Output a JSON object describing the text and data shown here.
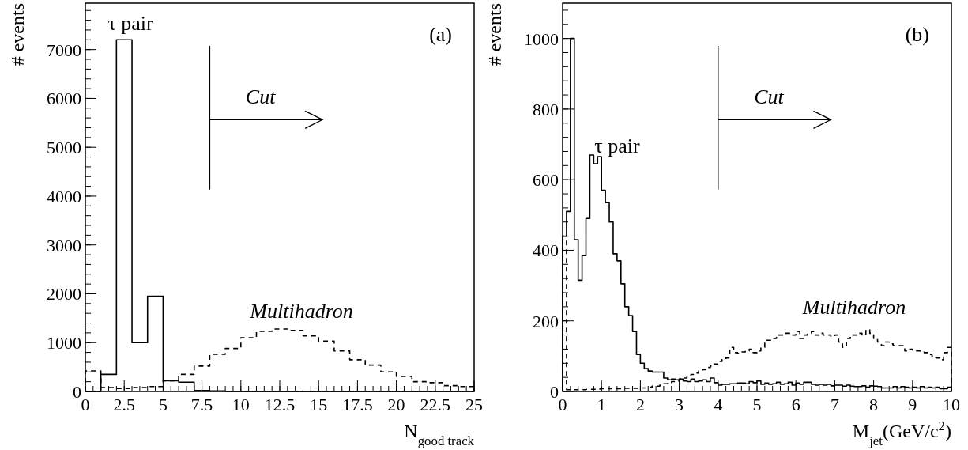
{
  "chart_data": [
    {
      "type": "histogram",
      "xlabel": "N$_{good track}$",
      "ylabel": "# events",
      "bins": [
        0,
        1,
        2,
        3,
        4,
        5,
        6,
        7,
        8,
        9,
        10,
        11,
        12,
        13,
        14,
        15,
        16,
        17,
        18,
        19,
        20,
        21,
        22,
        23,
        24,
        25
      ],
      "series": [
        {
          "name": "τ pair",
          "color": "#000000",
          "line_style": "solid",
          "values": [
            0,
            350,
            7200,
            1000,
            1950,
            220,
            190,
            20,
            10,
            0,
            0,
            0,
            0,
            0,
            0,
            0,
            0,
            0,
            0,
            0,
            0,
            0,
            0,
            0,
            0
          ]
        },
        {
          "name": "Multihadron",
          "color": "#000000",
          "line_style": "dashed",
          "values": [
            420,
            80,
            60,
            80,
            100,
            220,
            350,
            520,
            760,
            880,
            1100,
            1230,
            1280,
            1250,
            1140,
            1030,
            830,
            650,
            540,
            400,
            310,
            200,
            180,
            120,
            100
          ]
        }
      ],
      "xlim": [
        0,
        25
      ],
      "xticks": [
        0,
        2.5,
        5,
        7.5,
        10,
        12.5,
        15,
        17.5,
        20,
        22.5,
        25
      ],
      "ylim": [
        0,
        7950
      ],
      "yticks": [
        0,
        1000,
        2000,
        3000,
        4000,
        5000,
        6000,
        7000
      ],
      "ref_lines": [
        {
          "axis": "x",
          "value": 8,
          "label": "Cut"
        }
      ],
      "annotations": [
        "(a)"
      ]
    },
    {
      "type": "histogram",
      "xlabel": "M$_{jet}$(GeV/c$^{2}$)",
      "ylabel": "# events",
      "bins": [
        0,
        0.1,
        0.2,
        0.3,
        0.4,
        0.5,
        0.6,
        0.7,
        0.8,
        0.9,
        1,
        1.1,
        1.2,
        1.3,
        1.4,
        1.5,
        1.6,
        1.7,
        1.8,
        1.9,
        2,
        2.1,
        2.2,
        2.3,
        2.4,
        2.5,
        2.6,
        2.7,
        2.8,
        2.9,
        3,
        3.1,
        3.2,
        3.3,
        3.4,
        3.5,
        3.6,
        3.7,
        3.8,
        3.9,
        4,
        4.1,
        4.2,
        4.3,
        4.4,
        4.5,
        4.6,
        4.7,
        4.8,
        4.9,
        5,
        5.1,
        5.2,
        5.3,
        5.4,
        5.5,
        5.6,
        5.7,
        5.8,
        5.9,
        6,
        6.1,
        6.2,
        6.3,
        6.4,
        6.5,
        6.6,
        6.7,
        6.8,
        6.9,
        7,
        7.1,
        7.2,
        7.3,
        7.4,
        7.5,
        7.6,
        7.7,
        7.8,
        7.9,
        8,
        8.1,
        8.2,
        8.3,
        8.4,
        8.5,
        8.6,
        8.7,
        8.8,
        8.9,
        9,
        9.1,
        9.2,
        9.3,
        9.4,
        9.5,
        9.6,
        9.7,
        9.8,
        9.9,
        10
      ],
      "series": [
        {
          "name": "τ pair",
          "color": "#000000",
          "line_style": "solid",
          "values": [
            440,
            510,
            1000,
            430,
            315,
            385,
            490,
            670,
            645,
            665,
            570,
            535,
            480,
            390,
            370,
            305,
            240,
            215,
            170,
            105,
            80,
            65,
            58,
            55,
            55,
            55,
            38,
            33,
            35,
            33,
            35,
            30,
            28,
            35,
            28,
            30,
            33,
            28,
            38,
            25,
            18,
            20,
            20,
            22,
            22,
            24,
            24,
            22,
            28,
            25,
            30,
            20,
            24,
            20,
            22,
            26,
            20,
            22,
            26,
            18,
            24,
            20,
            26,
            26,
            20,
            18,
            20,
            18,
            20,
            16,
            18,
            18,
            15,
            18,
            15,
            14,
            14,
            16,
            12,
            16,
            15,
            14,
            10,
            10,
            10,
            14,
            10,
            14,
            12,
            10,
            12,
            10,
            14,
            10,
            12,
            10,
            12,
            8,
            8,
            12
          ]
        },
        {
          "name": "Multihadron",
          "color": "#000000",
          "line_style": "dashed",
          "values": [
            430,
            5,
            5,
            5,
            5,
            5,
            6,
            6,
            6,
            7,
            8,
            8,
            8,
            8,
            8,
            8,
            9,
            9,
            9,
            9,
            10,
            10,
            12,
            15,
            15,
            18,
            22,
            25,
            28,
            30,
            35,
            38,
            42,
            48,
            52,
            58,
            62,
            68,
            72,
            78,
            85,
            90,
            95,
            125,
            110,
            108,
            112,
            115,
            120,
            110,
            115,
            125,
            145,
            145,
            150,
            160,
            160,
            165,
            165,
            160,
            170,
            150,
            160,
            165,
            170,
            160,
            165,
            160,
            160,
            155,
            160,
            140,
            125,
            150,
            160,
            160,
            165,
            160,
            175,
            165,
            150,
            140,
            130,
            140,
            135,
            130,
            130,
            130,
            115,
            120,
            115,
            115,
            115,
            110,
            105,
            100,
            95,
            90,
            110,
            125
          ]
        }
      ],
      "xlim": [
        0,
        10
      ],
      "xticks": [
        0,
        1,
        2,
        3,
        4,
        5,
        6,
        7,
        8,
        9,
        10
      ],
      "ylim": [
        0,
        1100
      ],
      "yticks": [
        0,
        200,
        400,
        600,
        800,
        1000
      ],
      "ref_lines": [
        {
          "axis": "x",
          "value": 4,
          "label": "Cut"
        }
      ],
      "annotations": [
        "(b)"
      ]
    }
  ]
}
